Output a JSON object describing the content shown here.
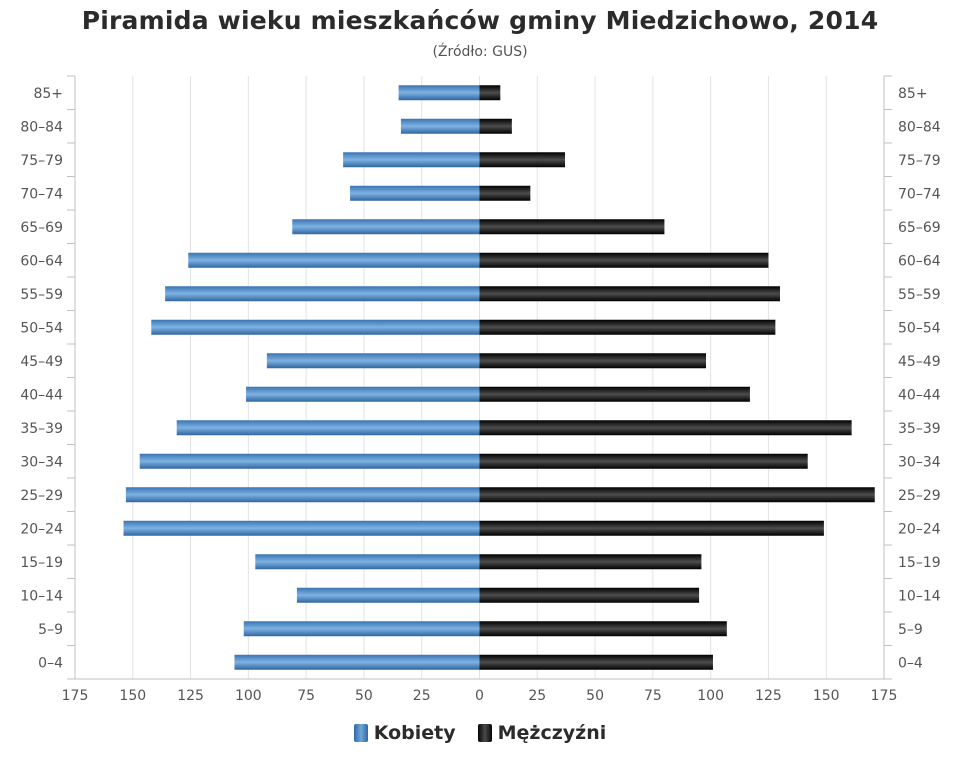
{
  "chart_data": {
    "type": "bar",
    "title": "Piramida wieku mieszkańców gminy Miedzichowo, 2014",
    "subtitle": "(Źródło: GUS)",
    "categories": [
      "85+",
      "80–84",
      "75–79",
      "70–74",
      "65–69",
      "60–64",
      "55–59",
      "50–54",
      "45–49",
      "40–44",
      "35–39",
      "30–34",
      "25–29",
      "20–24",
      "15–19",
      "10–14",
      "5–9",
      "0–4"
    ],
    "series": [
      {
        "name": "Kobiety",
        "color": "#4a86c5",
        "values": [
          35,
          34,
          59,
          56,
          81,
          126,
          136,
          142,
          92,
          101,
          131,
          147,
          153,
          154,
          97,
          79,
          102,
          106
        ]
      },
      {
        "name": "Mężczyźni",
        "color": "#1a1a1a",
        "values": [
          9,
          14,
          37,
          22,
          80,
          125,
          130,
          128,
          98,
          117,
          161,
          142,
          171,
          149,
          96,
          95,
          107,
          101
        ]
      }
    ],
    "xlim": [
      -175,
      175
    ],
    "x_ticks": [
      "175",
      "150",
      "125",
      "100",
      "75",
      "50",
      "25",
      "0",
      "25",
      "50",
      "75",
      "100",
      "125",
      "150",
      "175"
    ],
    "grid": true,
    "legend_position": "bottom"
  }
}
